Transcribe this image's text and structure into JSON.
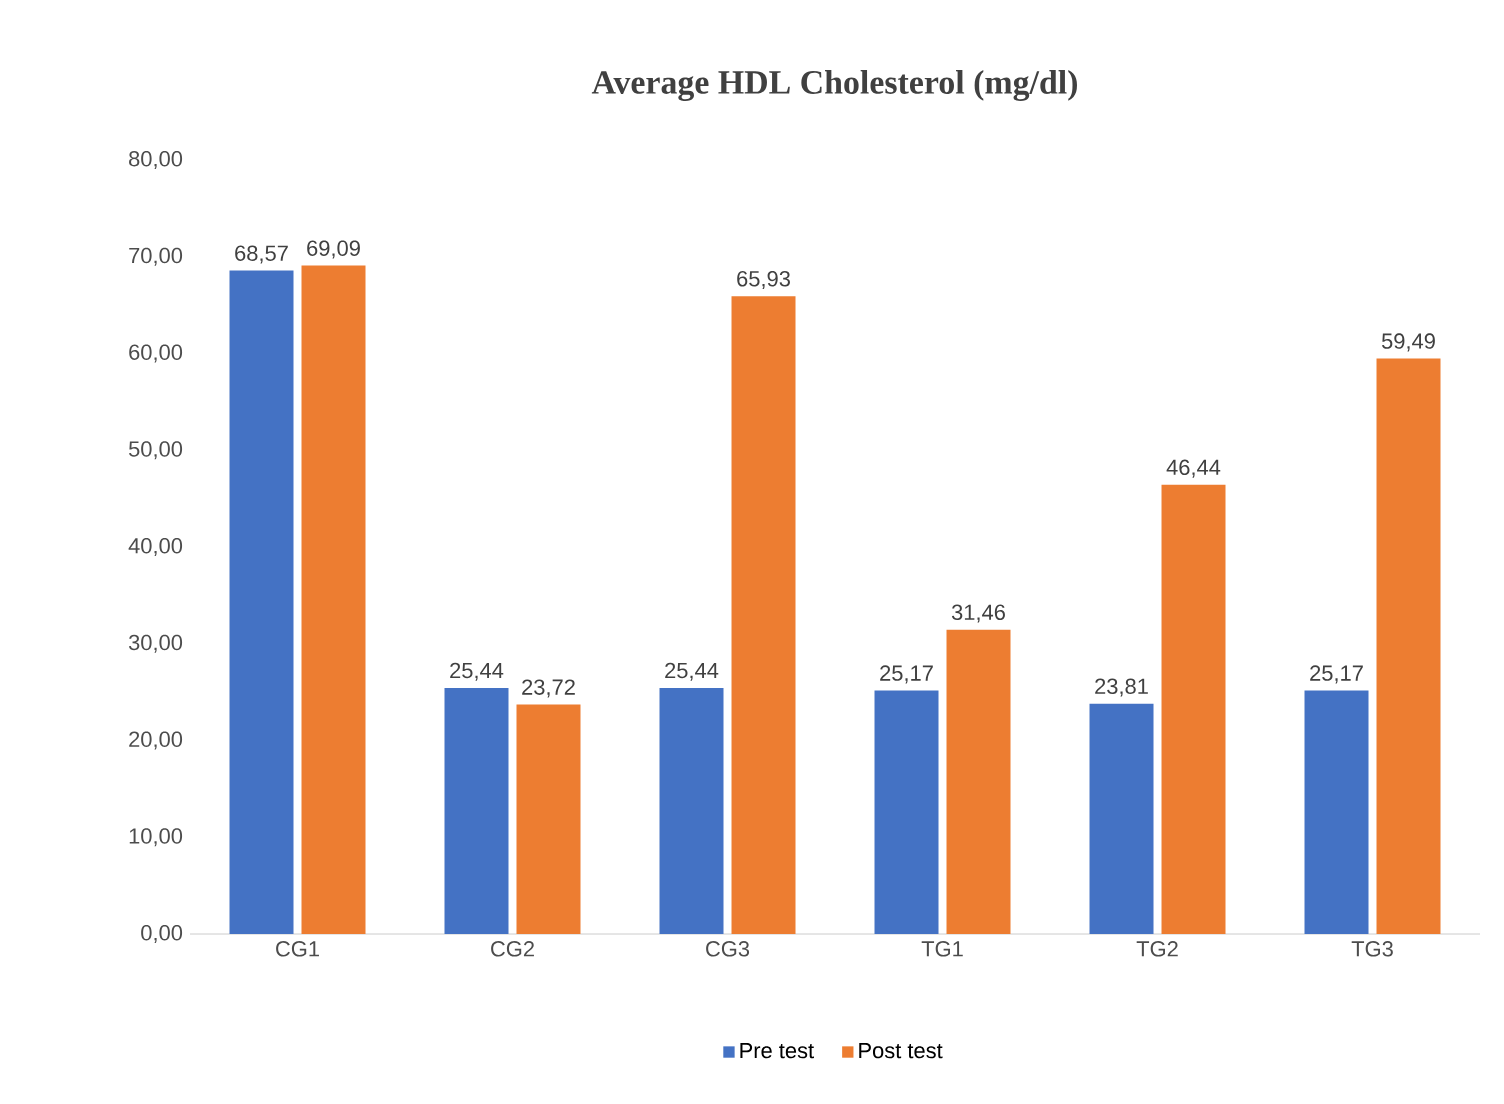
{
  "chart_data": {
    "type": "bar",
    "title": "Average HDL Cholesterol (mg/dl)",
    "categories": [
      "CG1",
      "CG2",
      "CG3",
      "TG1",
      "TG2",
      "TG3"
    ],
    "series": [
      {
        "name": "Pre test",
        "color": "#4472c4",
        "values": [
          68.57,
          25.44,
          25.44,
          25.17,
          23.81,
          25.17
        ],
        "value_labels": [
          "68,57",
          "25,44",
          "25,44",
          "25,17",
          "23,81",
          "25,17"
        ]
      },
      {
        "name": "Post test",
        "color": "#ed7d31",
        "values": [
          69.09,
          23.72,
          65.93,
          31.46,
          46.44,
          59.49
        ],
        "value_labels": [
          "69,09",
          "23,72",
          "65,93",
          "31,46",
          "46,44",
          "59,49"
        ]
      }
    ],
    "ylim": [
      0,
      80
    ],
    "yticks": [
      {
        "value": 0,
        "label": "0,00"
      },
      {
        "value": 10,
        "label": "10,00"
      },
      {
        "value": 20,
        "label": "20,00"
      },
      {
        "value": 30,
        "label": "30,00"
      },
      {
        "value": 40,
        "label": "40,00"
      },
      {
        "value": 50,
        "label": "50,00"
      },
      {
        "value": 60,
        "label": "60,00"
      },
      {
        "value": 70,
        "label": "70,00"
      },
      {
        "value": 80,
        "label": "80,00"
      }
    ],
    "grid": false,
    "legend": "bottom"
  }
}
